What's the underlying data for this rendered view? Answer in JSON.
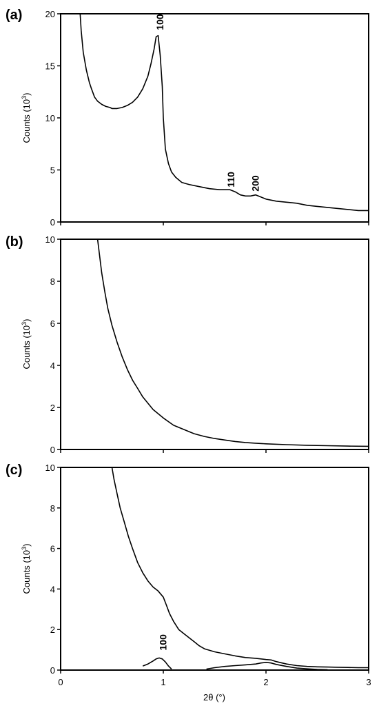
{
  "chart_data": [
    {
      "type": "line",
      "panel_label": "(a)",
      "ylabel": "Counts (10",
      "ylabel_sup": "3",
      "ylabel_end": ")",
      "xlim": [
        0,
        3
      ],
      "ylim": [
        0,
        20
      ],
      "yticks": [
        0,
        5,
        10,
        15,
        20
      ],
      "series": [
        {
          "x": [
            0.19,
            0.2,
            0.22,
            0.25,
            0.28,
            0.3,
            0.33,
            0.36,
            0.4,
            0.44,
            0.48,
            0.5,
            0.55,
            0.6,
            0.65,
            0.7,
            0.75,
            0.8,
            0.85,
            0.88,
            0.91,
            0.93,
            0.95,
            0.97,
            0.99,
            1.0,
            1.02,
            1.05,
            1.08,
            1.12,
            1.18,
            1.25,
            1.35,
            1.45,
            1.55,
            1.6,
            1.65,
            1.7,
            1.75,
            1.8,
            1.85,
            1.9,
            1.95,
            2.0,
            2.1,
            2.2,
            2.3,
            2.4,
            2.5,
            2.6,
            2.7,
            2.8,
            2.9,
            3.0
          ],
          "y": [
            20.0,
            18.4,
            16.3,
            14.6,
            13.4,
            12.8,
            12.0,
            11.6,
            11.3,
            11.1,
            11.0,
            10.9,
            10.9,
            11.0,
            11.2,
            11.5,
            12.0,
            12.8,
            14.0,
            15.2,
            16.6,
            17.8,
            17.9,
            16.0,
            13.0,
            10.0,
            7.0,
            5.6,
            4.8,
            4.3,
            3.8,
            3.6,
            3.4,
            3.2,
            3.1,
            3.1,
            3.1,
            2.9,
            2.6,
            2.5,
            2.5,
            2.6,
            2.4,
            2.2,
            2.0,
            1.9,
            1.8,
            1.6,
            1.5,
            1.4,
            1.3,
            1.2,
            1.1,
            1.1
          ]
        }
      ],
      "annotations": [
        {
          "text": "100",
          "x": 0.96,
          "y": 18.3
        },
        {
          "text": "110",
          "x": 1.65,
          "y": 3.2
        },
        {
          "text": "200",
          "x": 1.89,
          "y": 2.8
        }
      ]
    },
    {
      "type": "line",
      "panel_label": "(b)",
      "ylabel": "Counts (10",
      "ylabel_sup": "3",
      "ylabel_end": ")",
      "xlim": [
        0,
        3
      ],
      "ylim": [
        0,
        10
      ],
      "yticks": [
        0,
        2,
        4,
        6,
        8,
        10
      ],
      "series": [
        {
          "x": [
            0.36,
            0.38,
            0.4,
            0.43,
            0.46,
            0.5,
            0.55,
            0.6,
            0.65,
            0.7,
            0.75,
            0.8,
            0.9,
            1.0,
            1.1,
            1.2,
            1.3,
            1.4,
            1.5,
            1.6,
            1.7,
            1.8,
            1.9,
            2.0,
            2.2,
            2.4,
            2.6,
            2.8,
            3.0
          ],
          "y": [
            10.0,
            9.2,
            8.4,
            7.5,
            6.7,
            5.9,
            5.1,
            4.4,
            3.8,
            3.3,
            2.9,
            2.5,
            1.9,
            1.5,
            1.15,
            0.95,
            0.75,
            0.62,
            0.52,
            0.45,
            0.38,
            0.33,
            0.3,
            0.27,
            0.23,
            0.2,
            0.18,
            0.16,
            0.15
          ]
        }
      ]
    },
    {
      "type": "line",
      "panel_label": "(c)",
      "ylabel": "Counts (10",
      "ylabel_sup": "3",
      "ylabel_end": ")",
      "xlabel": "2θ (°)",
      "xlim": [
        0,
        3
      ],
      "ylim": [
        0,
        10
      ],
      "yticks": [
        0,
        2,
        4,
        6,
        8,
        10
      ],
      "xticks": [
        0,
        1,
        2,
        3
      ],
      "series": [
        {
          "x": [
            0.5,
            0.52,
            0.55,
            0.58,
            0.62,
            0.66,
            0.7,
            0.75,
            0.8,
            0.85,
            0.9,
            0.95,
            1.0,
            1.03,
            1.06,
            1.1,
            1.15,
            1.2,
            1.25,
            1.3,
            1.35,
            1.4,
            1.5,
            1.6,
            1.7,
            1.8,
            1.9,
            2.0,
            2.05,
            2.1,
            2.2,
            2.3,
            2.4,
            2.5,
            2.6,
            2.7,
            2.8,
            2.9,
            3.0
          ],
          "y": [
            10.0,
            9.4,
            8.7,
            8.0,
            7.3,
            6.6,
            6.0,
            5.3,
            4.8,
            4.4,
            4.1,
            3.9,
            3.6,
            3.2,
            2.8,
            2.4,
            2.0,
            1.8,
            1.6,
            1.4,
            1.2,
            1.05,
            0.9,
            0.8,
            0.7,
            0.62,
            0.58,
            0.52,
            0.5,
            0.42,
            0.3,
            0.22,
            0.18,
            0.16,
            0.15,
            0.14,
            0.13,
            0.12,
            0.12
          ]
        },
        {
          "x": [
            0.8,
            0.85,
            0.9,
            0.93,
            0.96,
            0.99,
            1.02,
            1.05,
            1.08
          ],
          "y": [
            0.2,
            0.3,
            0.45,
            0.55,
            0.6,
            0.55,
            0.4,
            0.2,
            0.05
          ]
        },
        {
          "x": [
            1.42,
            1.5,
            1.6,
            1.7,
            1.8,
            1.9,
            1.95,
            2.0,
            2.05,
            2.1,
            2.2,
            2.3,
            2.4,
            2.5,
            2.6
          ],
          "y": [
            0.05,
            0.12,
            0.18,
            0.22,
            0.26,
            0.3,
            0.35,
            0.38,
            0.35,
            0.28,
            0.18,
            0.1,
            0.06,
            0.03,
            0.02
          ]
        }
      ],
      "annotations": [
        {
          "text": "100",
          "x": 0.99,
          "y": 0.9
        }
      ]
    }
  ]
}
